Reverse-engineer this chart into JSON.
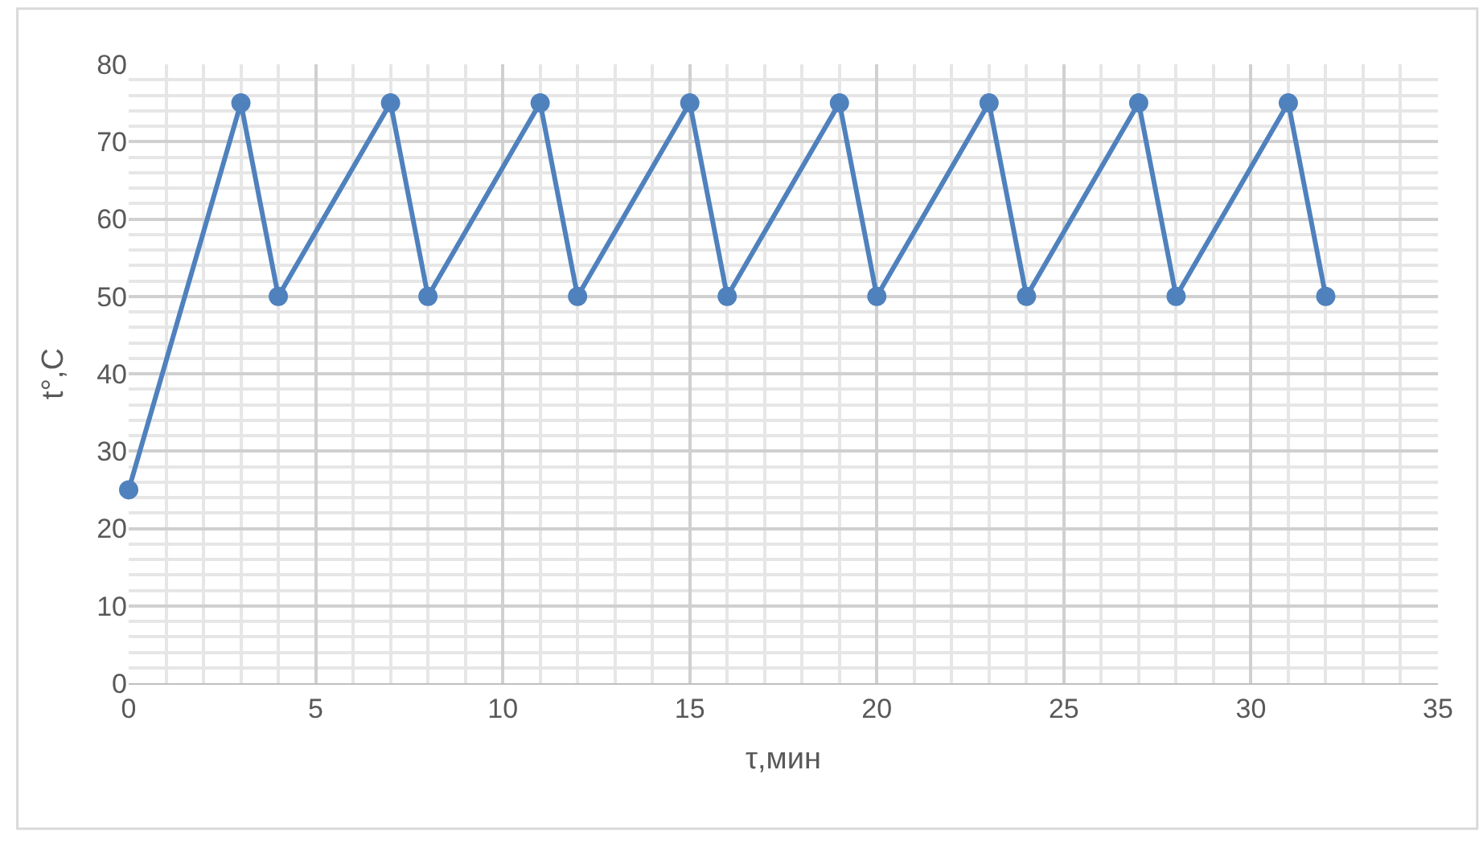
{
  "chart_data": {
    "type": "line",
    "xlabel": "τ,мин",
    "ylabel": "t°,С",
    "x": [
      0,
      3,
      4,
      7,
      8,
      11,
      12,
      15,
      16,
      19,
      20,
      23,
      24,
      27,
      28,
      31,
      32
    ],
    "series": [
      {
        "color": "#4f81bd",
        "values": [
          25,
          75,
          50,
          75,
          50,
          75,
          50,
          75,
          50,
          75,
          50,
          75,
          50,
          75,
          50,
          75,
          50
        ]
      }
    ],
    "xlim": [
      0,
      35
    ],
    "xticks": [
      0,
      5,
      10,
      15,
      20,
      25,
      30,
      35
    ],
    "ylim": [
      0,
      80
    ],
    "yticks": [
      0,
      10,
      20,
      30,
      40,
      50,
      60,
      70,
      80
    ],
    "grid": true,
    "marker": "circle",
    "line_style": "solid",
    "legend": false
  }
}
